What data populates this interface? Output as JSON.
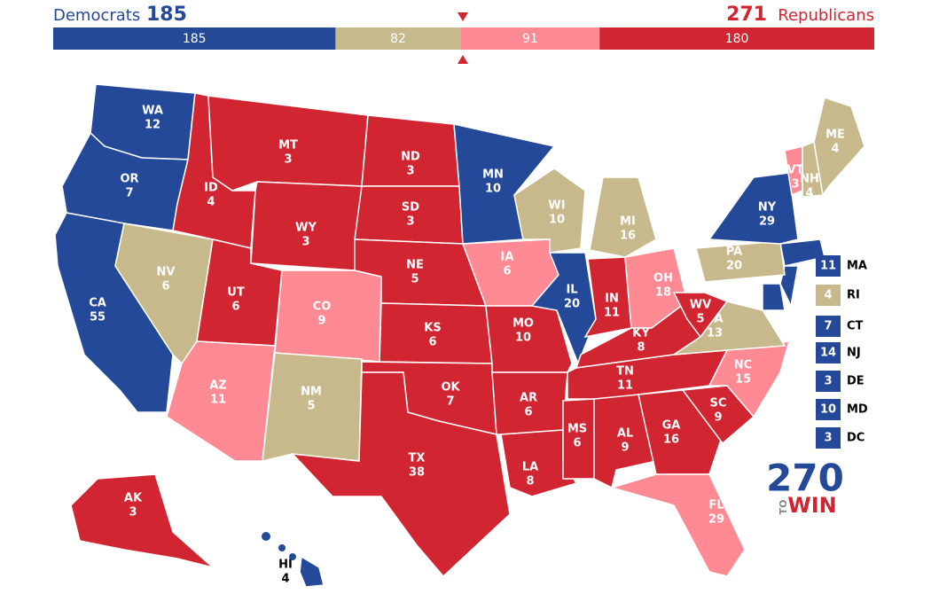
{
  "header": {
    "dem_label": "Democrats",
    "dem_total": 185,
    "rep_total": 271,
    "rep_label": "Republicans"
  },
  "bar": {
    "segments": [
      {
        "value": 185,
        "color": "#244999"
      },
      {
        "value": 82,
        "color": "#c8b98c"
      },
      {
        "value": 91,
        "color": "#ff8a93"
      },
      {
        "value": 180,
        "color": "#d22532"
      }
    ]
  },
  "states": [
    {
      "abbr": "WA",
      "ev": 12,
      "color": "#244999"
    },
    {
      "abbr": "OR",
      "ev": 7,
      "color": "#244999"
    },
    {
      "abbr": "CA",
      "ev": 55,
      "color": "#244999"
    },
    {
      "abbr": "NV",
      "ev": 6,
      "color": "#c8b98c"
    },
    {
      "abbr": "ID",
      "ev": 4,
      "color": "#d22532"
    },
    {
      "abbr": "MT",
      "ev": 3,
      "color": "#d22532"
    },
    {
      "abbr": "WY",
      "ev": 3,
      "color": "#d22532"
    },
    {
      "abbr": "UT",
      "ev": 6,
      "color": "#d22532"
    },
    {
      "abbr": "AZ",
      "ev": 11,
      "color": "#ff8a93"
    },
    {
      "abbr": "CO",
      "ev": 9,
      "color": "#ff8a93"
    },
    {
      "abbr": "NM",
      "ev": 5,
      "color": "#c8b98c"
    },
    {
      "abbr": "ND",
      "ev": 3,
      "color": "#d22532"
    },
    {
      "abbr": "SD",
      "ev": 3,
      "color": "#d22532"
    },
    {
      "abbr": "NE",
      "ev": 5,
      "color": "#d22532"
    },
    {
      "abbr": "KS",
      "ev": 6,
      "color": "#d22532"
    },
    {
      "abbr": "OK",
      "ev": 7,
      "color": "#d22532"
    },
    {
      "abbr": "TX",
      "ev": 38,
      "color": "#d22532"
    },
    {
      "abbr": "MN",
      "ev": 10,
      "color": "#244999"
    },
    {
      "abbr": "IA",
      "ev": 6,
      "color": "#ff8a93"
    },
    {
      "abbr": "MO",
      "ev": 10,
      "color": "#d22532"
    },
    {
      "abbr": "AR",
      "ev": 6,
      "color": "#d22532"
    },
    {
      "abbr": "LA",
      "ev": 8,
      "color": "#d22532"
    },
    {
      "abbr": "WI",
      "ev": 10,
      "color": "#c8b98c"
    },
    {
      "abbr": "IL",
      "ev": 20,
      "color": "#244999"
    },
    {
      "abbr": "MI",
      "ev": 16,
      "color": "#c8b98c"
    },
    {
      "abbr": "IN",
      "ev": 11,
      "color": "#d22532"
    },
    {
      "abbr": "OH",
      "ev": 18,
      "color": "#ff8a93"
    },
    {
      "abbr": "KY",
      "ev": 8,
      "color": "#d22532"
    },
    {
      "abbr": "TN",
      "ev": 11,
      "color": "#d22532"
    },
    {
      "abbr": "MS",
      "ev": 6,
      "color": "#d22532"
    },
    {
      "abbr": "AL",
      "ev": 9,
      "color": "#d22532"
    },
    {
      "abbr": "GA",
      "ev": 16,
      "color": "#d22532"
    },
    {
      "abbr": "FL",
      "ev": 29,
      "color": "#ff8a93"
    },
    {
      "abbr": "SC",
      "ev": 9,
      "color": "#d22532"
    },
    {
      "abbr": "NC",
      "ev": 15,
      "color": "#ff8a93"
    },
    {
      "abbr": "VA",
      "ev": 13,
      "color": "#c8b98c"
    },
    {
      "abbr": "WV",
      "ev": 5,
      "color": "#d22532"
    },
    {
      "abbr": "PA",
      "ev": 20,
      "color": "#c8b98c"
    },
    {
      "abbr": "NY",
      "ev": 29,
      "color": "#244999"
    },
    {
      "abbr": "VT",
      "ev": 3,
      "color": "#ff8a93"
    },
    {
      "abbr": "NH",
      "ev": 4,
      "color": "#c8b98c"
    },
    {
      "abbr": "ME",
      "ev": 4,
      "color": "#c8b98c"
    },
    {
      "abbr": "AK",
      "ev": 3,
      "color": "#d22532"
    },
    {
      "abbr": "HI",
      "ev": 4,
      "color": "#244999"
    }
  ],
  "small_states": [
    {
      "abbr": "MA",
      "ev": 11,
      "color": "#244999"
    },
    {
      "abbr": "RI",
      "ev": 4,
      "color": "#c8b98c"
    },
    {
      "abbr": "CT",
      "ev": 7,
      "color": "#244999"
    },
    {
      "abbr": "NJ",
      "ev": 14,
      "color": "#244999"
    },
    {
      "abbr": "DE",
      "ev": 3,
      "color": "#244999"
    },
    {
      "abbr": "MD",
      "ev": 10,
      "color": "#244999"
    },
    {
      "abbr": "DC",
      "ev": 3,
      "color": "#244999"
    }
  ],
  "logo": {
    "number": "270",
    "to": "TO",
    "win": "WIN"
  }
}
